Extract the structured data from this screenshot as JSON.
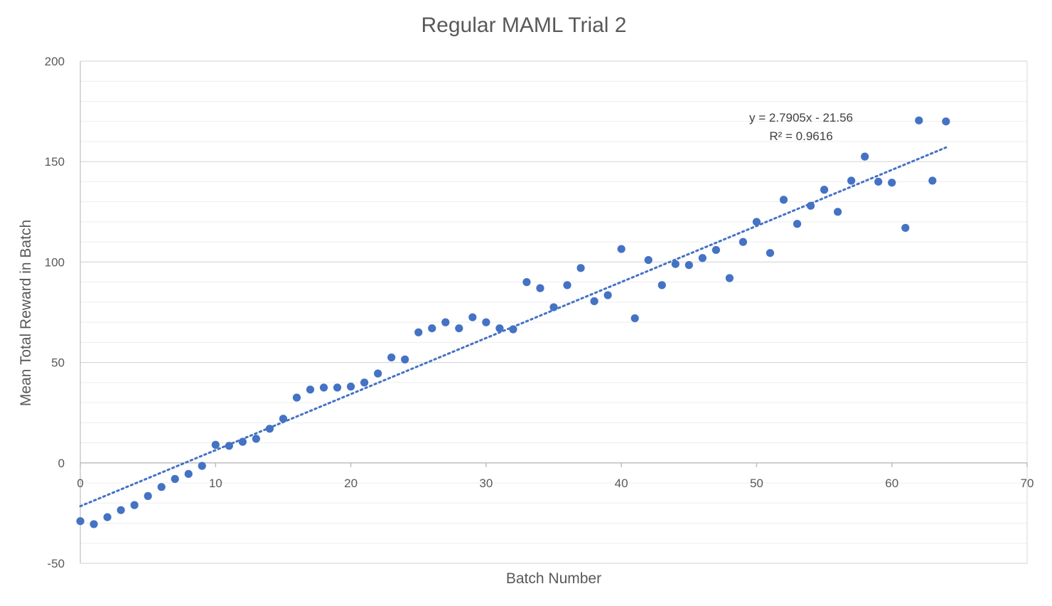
{
  "chart_data": {
    "type": "scatter",
    "title": "Regular MAML Trial 2",
    "xlabel": "Batch Number",
    "ylabel": "Mean Total Reward in Batch",
    "xlim": [
      0,
      70
    ],
    "ylim": [
      -50,
      200
    ],
    "x_ticks": [
      0,
      10,
      20,
      30,
      40,
      50,
      60,
      70
    ],
    "y_ticks": [
      -50,
      0,
      50,
      100,
      150,
      200
    ],
    "y_minor_step": 10,
    "grid": true,
    "legend": "none",
    "series": [
      {
        "color": "#4472C4",
        "points": [
          [
            0,
            -29
          ],
          [
            1,
            -30.5
          ],
          [
            2,
            -27
          ],
          [
            3,
            -23.5
          ],
          [
            4,
            -21
          ],
          [
            5,
            -16.5
          ],
          [
            6,
            -12
          ],
          [
            7,
            -8
          ],
          [
            8,
            -5.5
          ],
          [
            9,
            -1.5
          ],
          [
            10,
            9
          ],
          [
            11,
            8.5
          ],
          [
            12,
            10.5
          ],
          [
            13,
            12
          ],
          [
            14,
            17
          ],
          [
            15,
            22
          ],
          [
            16,
            32.5
          ],
          [
            17,
            36.5
          ],
          [
            18,
            37.5
          ],
          [
            19,
            37.5
          ],
          [
            20,
            38
          ],
          [
            21,
            40
          ],
          [
            22,
            44.5
          ],
          [
            23,
            52.5
          ],
          [
            24,
            51.5
          ],
          [
            25,
            65
          ],
          [
            26,
            67
          ],
          [
            27,
            70
          ],
          [
            28,
            67
          ],
          [
            29,
            72.5
          ],
          [
            30,
            70
          ],
          [
            31,
            67
          ],
          [
            32,
            66.5
          ],
          [
            33,
            90
          ],
          [
            34,
            87
          ],
          [
            35,
            77.5
          ],
          [
            36,
            88.5
          ],
          [
            37,
            97
          ],
          [
            38,
            80.5
          ],
          [
            39,
            83.5
          ],
          [
            40,
            106.5
          ],
          [
            41,
            72
          ],
          [
            42,
            101
          ],
          [
            43,
            88.5
          ],
          [
            44,
            99
          ],
          [
            45,
            98.5
          ],
          [
            46,
            102
          ],
          [
            47,
            106
          ],
          [
            48,
            92
          ],
          [
            49,
            110
          ],
          [
            50,
            120
          ],
          [
            51,
            104.5
          ],
          [
            52,
            131
          ],
          [
            53,
            119
          ],
          [
            54,
            128
          ],
          [
            55,
            136
          ],
          [
            56,
            125
          ],
          [
            57,
            140.5
          ],
          [
            58,
            152.5
          ],
          [
            59,
            140
          ],
          [
            60,
            139.5
          ],
          [
            61,
            117
          ],
          [
            62,
            170.5
          ],
          [
            63,
            140.5
          ],
          [
            64,
            170
          ]
        ]
      }
    ],
    "trendline": {
      "type": "linear",
      "slope": 2.7905,
      "intercept": -21.56,
      "x_range": [
        0,
        64
      ],
      "color": "#4472C4",
      "style": "dotted",
      "equation_text": "y = 2.7905x - 21.56",
      "r2_text": "R² = 0.9616"
    }
  }
}
